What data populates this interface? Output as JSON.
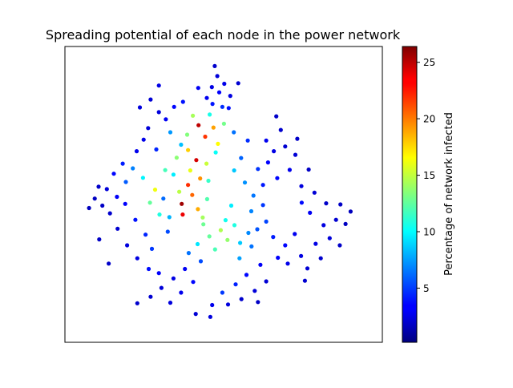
{
  "chart_data": {
    "type": "scatter",
    "title": "Spreading potential of each node in the power network",
    "xlabel": "",
    "ylabel": "",
    "xticks_visible": false,
    "yticks_visible": false,
    "grid": false,
    "legend": "none",
    "colormap": "jet",
    "colorbar": {
      "label": "Percentage of network infected",
      "vmin": 0.2,
      "vmax": 26.4,
      "ticks": [
        5,
        10,
        15,
        20,
        25
      ],
      "tick_labels": [
        "5",
        "10",
        "15",
        "20",
        "25"
      ],
      "placement": "right"
    },
    "xlim": [
      0,
      100
    ],
    "ylim": [
      0,
      100
    ],
    "points": [
      [
        40.1,
        49.8,
        20.5
      ],
      [
        38.8,
        53.2,
        22.0
      ],
      [
        42.6,
        55.4,
        19.4
      ],
      [
        41.9,
        45.0,
        18.7
      ],
      [
        36.0,
        50.9,
        14.8
      ],
      [
        44.8,
        48.4,
        12.1
      ],
      [
        37.1,
        43.2,
        23.6
      ],
      [
        39.5,
        58.1,
        16.0
      ],
      [
        45.2,
        54.6,
        11.4
      ],
      [
        34.2,
        56.7,
        9.6
      ],
      [
        44.2,
        69.5,
        21.8
      ],
      [
        46.8,
        72.6,
        19.0
      ],
      [
        42.1,
        73.4,
        24.8
      ],
      [
        48.2,
        67.1,
        16.6
      ],
      [
        38.5,
        70.2,
        13.4
      ],
      [
        50.1,
        73.9,
        13.0
      ],
      [
        45.6,
        77.0,
        10.6
      ],
      [
        40.3,
        76.6,
        14.3
      ],
      [
        47.5,
        64.2,
        10.2
      ],
      [
        36.6,
        66.8,
        8.4
      ],
      [
        49.1,
        37.9,
        14.5
      ],
      [
        51.2,
        34.6,
        13.8
      ],
      [
        45.5,
        35.8,
        12.6
      ],
      [
        53.4,
        39.6,
        10.8
      ],
      [
        47.3,
        31.4,
        11.9
      ],
      [
        43.6,
        39.9,
        12.8
      ],
      [
        55.2,
        33.6,
        8.7
      ],
      [
        41.8,
        33.2,
        9.4
      ],
      [
        50.6,
        41.3,
        10.4
      ],
      [
        57.8,
        37.0,
        7.0
      ],
      [
        53.3,
        58.1,
        8.6
      ],
      [
        56.7,
        54.0,
        7.2
      ],
      [
        59.4,
        49.6,
        6.5
      ],
      [
        58.7,
        44.3,
        6.9
      ],
      [
        55.5,
        62.3,
        6.0
      ],
      [
        60.8,
        58.6,
        4.8
      ],
      [
        62.4,
        53.2,
        4.1
      ],
      [
        32.9,
        42.3,
        8.1
      ],
      [
        31.0,
        48.6,
        6.2
      ],
      [
        32.4,
        37.4,
        5.4
      ],
      [
        48.6,
        84.5,
        3.4
      ],
      [
        46.3,
        86.3,
        2.8
      ],
      [
        50.2,
        87.4,
        2.9
      ],
      [
        44.7,
        82.6,
        3.1
      ],
      [
        52.1,
        83.3,
        2.7
      ],
      [
        48.0,
        90.0,
        2.5
      ],
      [
        46.5,
        80.6,
        4.0
      ],
      [
        49.6,
        79.6,
        4.6
      ],
      [
        51.6,
        79.2,
        3.8
      ],
      [
        47.2,
        93.4,
        2.2
      ],
      [
        31.8,
        75.4,
        3.2
      ],
      [
        29.6,
        77.8,
        2.6
      ],
      [
        34.4,
        79.6,
        3.6
      ],
      [
        26.2,
        72.4,
        2.5
      ],
      [
        37.2,
        81.3,
        3.9
      ],
      [
        24.8,
        68.5,
        2.9
      ],
      [
        28.8,
        65.2,
        4.4
      ],
      [
        22.6,
        64.6,
        3.0
      ],
      [
        33.2,
        71.0,
        7.4
      ],
      [
        27.0,
        82.1,
        2.4
      ],
      [
        65.8,
        64.6,
        2.8
      ],
      [
        64.0,
        60.8,
        3.5
      ],
      [
        69.4,
        66.2,
        2.3
      ],
      [
        72.6,
        63.4,
        2.4
      ],
      [
        70.8,
        58.3,
        3.0
      ],
      [
        74.5,
        52.8,
        2.6
      ],
      [
        66.9,
        55.5,
        3.6
      ],
      [
        63.4,
        68.2,
        3.1
      ],
      [
        68.0,
        71.8,
        2.2
      ],
      [
        76.8,
        58.4,
        2.0
      ],
      [
        78.6,
        50.6,
        2.4
      ],
      [
        82.3,
        47.0,
        2.1
      ],
      [
        85.4,
        41.4,
        2.3
      ],
      [
        81.5,
        39.6,
        2.7
      ],
      [
        77.2,
        43.8,
        3.2
      ],
      [
        74.6,
        47.2,
        3.7
      ],
      [
        86.8,
        46.6,
        2.0
      ],
      [
        83.4,
        35.2,
        2.5
      ],
      [
        79.0,
        33.3,
        2.8
      ],
      [
        88.4,
        40.0,
        1.9
      ],
      [
        72.4,
        36.6,
        3.1
      ],
      [
        69.4,
        32.8,
        3.6
      ],
      [
        74.4,
        29.2,
        2.7
      ],
      [
        70.2,
        26.6,
        2.9
      ],
      [
        76.4,
        25.0,
        2.4
      ],
      [
        80.6,
        28.4,
        2.2
      ],
      [
        67.1,
        28.6,
        3.4
      ],
      [
        65.6,
        35.6,
        4.2
      ],
      [
        63.4,
        40.8,
        5.2
      ],
      [
        62.4,
        46.4,
        4.9
      ],
      [
        63.4,
        20.6,
        2.4
      ],
      [
        59.8,
        17.4,
        2.5
      ],
      [
        55.6,
        14.6,
        2.2
      ],
      [
        51.4,
        12.8,
        2.6
      ],
      [
        57.2,
        22.8,
        3.6
      ],
      [
        53.8,
        19.6,
        4.3
      ],
      [
        49.6,
        16.8,
        4.9
      ],
      [
        61.6,
        26.2,
        3.3
      ],
      [
        46.4,
        12.6,
        3.0
      ],
      [
        60.8,
        13.6,
        2.0
      ],
      [
        37.8,
        24.8,
        3.2
      ],
      [
        34.2,
        21.6,
        2.8
      ],
      [
        30.4,
        18.4,
        2.5
      ],
      [
        27.0,
        15.4,
        2.3
      ],
      [
        40.4,
        20.4,
        3.6
      ],
      [
        36.6,
        16.8,
        3.0
      ],
      [
        33.2,
        13.4,
        2.6
      ],
      [
        42.8,
        27.4,
        5.4
      ],
      [
        39.0,
        30.2,
        6.4
      ],
      [
        29.6,
        23.4,
        3.4
      ],
      [
        22.8,
        28.4,
        2.7
      ],
      [
        19.6,
        32.8,
        2.6
      ],
      [
        16.6,
        38.4,
        2.3
      ],
      [
        14.2,
        43.6,
        2.2
      ],
      [
        25.4,
        36.4,
        4.4
      ],
      [
        22.2,
        41.4,
        3.9
      ],
      [
        19.0,
        46.8,
        3.4
      ],
      [
        27.4,
        31.6,
        4.9
      ],
      [
        11.8,
        46.2,
        2.0
      ],
      [
        9.4,
        48.6,
        1.9
      ],
      [
        16.4,
        49.2,
        3.3
      ],
      [
        13.2,
        51.8,
        2.5
      ],
      [
        10.6,
        52.6,
        2.1
      ],
      [
        19.2,
        54.2,
        5.8
      ],
      [
        21.4,
        58.8,
        6.8
      ],
      [
        18.2,
        60.4,
        4.2
      ],
      [
        15.4,
        57.0,
        3.6
      ],
      [
        24.6,
        55.6,
        9.8
      ],
      [
        26.8,
        47.2,
        12.6
      ],
      [
        28.4,
        51.6,
        16.2
      ],
      [
        38.8,
        65.0,
        17.8
      ],
      [
        41.4,
        61.6,
        24.2
      ],
      [
        35.2,
        62.4,
        13.6
      ],
      [
        44.6,
        60.4,
        15.2
      ],
      [
        31.6,
        58.2,
        11.8
      ],
      [
        36.8,
        46.8,
        25.6
      ],
      [
        29.8,
        43.2,
        10.8
      ],
      [
        43.4,
        42.2,
        14.2
      ],
      [
        52.4,
        46.2,
        9.6
      ],
      [
        55.0,
        28.4,
        7.6
      ],
      [
        26.4,
        24.8,
        3.8
      ],
      [
        58.8,
        32.4,
        6.4
      ],
      [
        60.6,
        38.2,
        5.6
      ],
      [
        57.6,
        68.2,
        4.6
      ],
      [
        53.2,
        71.0,
        6.4
      ],
      [
        42.0,
        86.0,
        3.2
      ],
      [
        54.6,
        87.6,
        2.3
      ],
      [
        73.2,
        68.8,
        2.1
      ],
      [
        86.6,
        32.8,
        2.1
      ],
      [
        75.6,
        20.8,
        2.3
      ],
      [
        45.8,
        8.6,
        2.6
      ],
      [
        41.2,
        9.6,
        2.4
      ],
      [
        22.8,
        13.2,
        2.2
      ],
      [
        13.8,
        26.6,
        2.1
      ],
      [
        10.8,
        34.8,
        2.0
      ],
      [
        7.6,
        45.4,
        1.8
      ],
      [
        29.6,
        86.8,
        2.8
      ],
      [
        23.6,
        79.4,
        2.6
      ],
      [
        66.6,
        76.4,
        2.1
      ],
      [
        90.0,
        44.2,
        1.8
      ]
    ]
  }
}
